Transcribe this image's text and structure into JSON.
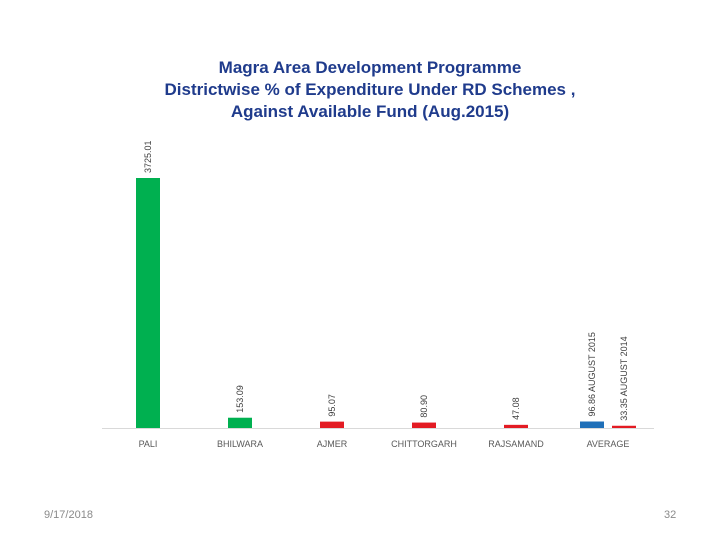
{
  "slide": {
    "title_lines": [
      "Magra Area Development Programme",
      "Districtwise % of Expenditure Under RD Schemes ,",
      "Against Available Fund (Aug.2015)"
    ],
    "date": "9/17/2018",
    "page_number": "32"
  },
  "chart_data": {
    "type": "bar",
    "title": "Magra Area Development Programme Districtwise % of Expenditure Under RD Schemes , Against Available Fund (Aug.2015)",
    "xlabel": "",
    "ylabel": "",
    "categories": [
      "PALI",
      "BHILWARA",
      "AJMER",
      "CHITTORGARH",
      "RAJSAMAND",
      "AVERAGE"
    ],
    "series": [
      {
        "values": [
          3725.01,
          153.09,
          95.07,
          80.9,
          47.08,
          96.86
        ],
        "data_labels": [
          "3725.01",
          "153.09",
          "95.07",
          "80.90",
          "47.08",
          "96.86 AUGUST 2015"
        ],
        "colors": [
          "#00b050",
          "#00b050",
          "#e31b23",
          "#e31b23",
          "#e31b23",
          "#1f6fb8"
        ]
      },
      {
        "values": [
          null,
          null,
          null,
          null,
          null,
          33.35
        ],
        "data_labels": [
          "",
          "",
          "",
          "",
          "",
          "33.35 AUGUST 2014"
        ],
        "colors": [
          "",
          "",
          "",
          "",
          "",
          "#e31b23"
        ]
      }
    ],
    "ylim": [
      0,
      3725.01
    ],
    "grid": false,
    "legend": "none"
  }
}
